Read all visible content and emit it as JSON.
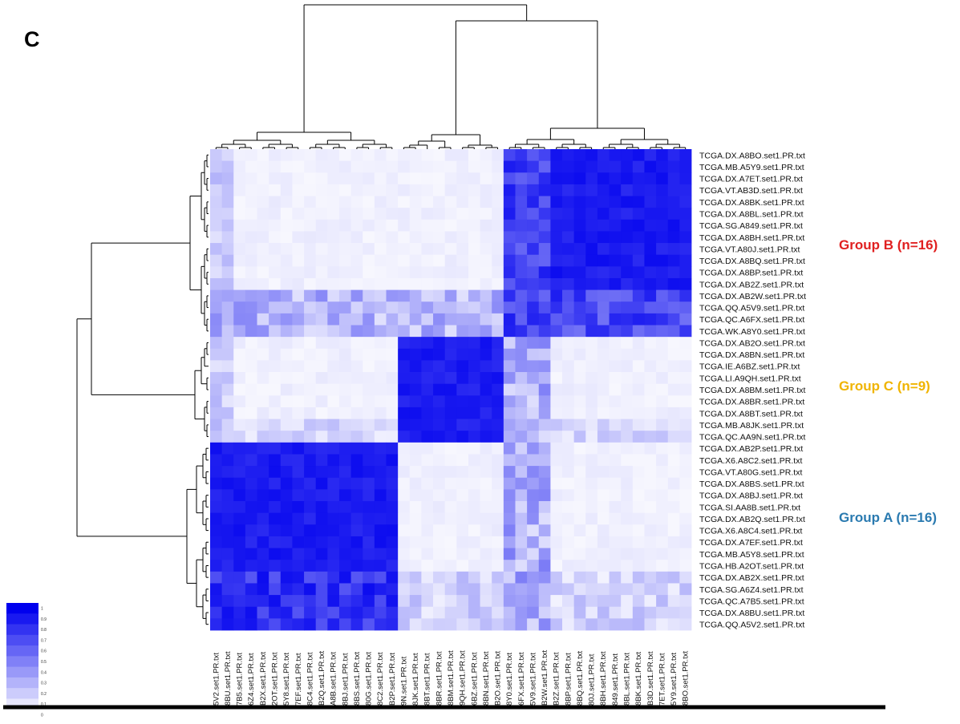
{
  "panel_letter": "C",
  "colors": {
    "high": "#0000ee",
    "low": "#ffffff",
    "dendrogram": "#000000",
    "group_b": "#e02020",
    "group_c": "#f0b400",
    "group_a": "#2a7ab0",
    "baseline": "#000000"
  },
  "groups": [
    {
      "label": "Group B (n=16)",
      "color_key": "group_b"
    },
    {
      "label": "Group C (n=9)",
      "color_key": "group_c"
    },
    {
      "label": "Group A (n=16)",
      "color_key": "group_a"
    }
  ],
  "chart_data": {
    "type": "heatmap",
    "color_scale": {
      "min": 0,
      "max": 1,
      "low_color": "#ffffff",
      "high_color": "#0000ee",
      "tick_labels": [
        "1",
        "0.9",
        "0.8",
        "0.7",
        "0.6",
        "0.5",
        "0.4",
        "0.3",
        "0.2",
        "0.1",
        "0"
      ]
    },
    "row_labels": [
      "TCGA.DX.A8BO.set1.PR.txt",
      "TCGA.MB.A5Y9.set1.PR.txt",
      "TCGA.DX.A7ET.set1.PR.txt",
      "TCGA.VT.AB3D.set1.PR.txt",
      "TCGA.DX.A8BK.set1.PR.txt",
      "TCGA.DX.A8BL.set1.PR.txt",
      "TCGA.SG.A849.set1.PR.txt",
      "TCGA.DX.A8BH.set1.PR.txt",
      "TCGA.VT.A80J.set1.PR.txt",
      "TCGA.DX.A8BQ.set1.PR.txt",
      "TCGA.DX.A8BP.set1.PR.txt",
      "TCGA.DX.AB2Z.set1.PR.txt",
      "TCGA.DX.AB2W.set1.PR.txt",
      "TCGA.QQ.A5V9.set1.PR.txt",
      "TCGA.QC.A6FX.set1.PR.txt",
      "TCGA.WK.A8Y0.set1.PR.txt",
      "TCGA.DX.AB2O.set1.PR.txt",
      "TCGA.DX.A8BN.set1.PR.txt",
      "TCGA.IE.A6BZ.set1.PR.txt",
      "TCGA.LI.A9QH.set1.PR.txt",
      "TCGA.DX.A8BM.set1.PR.txt",
      "TCGA.DX.A8BR.set1.PR.txt",
      "TCGA.DX.A8BT.set1.PR.txt",
      "TCGA.MB.A8JK.set1.PR.txt",
      "TCGA.QC.AA9N.set1.PR.txt",
      "TCGA.DX.AB2P.set1.PR.txt",
      "TCGA.X6.A8C2.set1.PR.txt",
      "TCGA.VT.A80G.set1.PR.txt",
      "TCGA.DX.A8BS.set1.PR.txt",
      "TCGA.DX.A8BJ.set1.PR.txt",
      "TCGA.SI.AA8B.set1.PR.txt",
      "TCGA.DX.AB2Q.set1.PR.txt",
      "TCGA.X6.A8C4.set1.PR.txt",
      "TCGA.DX.A7EF.set1.PR.txt",
      "TCGA.MB.A5Y8.set1.PR.txt",
      "TCGA.HB.A2OT.set1.PR.txt",
      "TCGA.DX.AB2X.set1.PR.txt",
      "TCGA.SG.A6Z4.set1.PR.txt",
      "TCGA.QC.A7B5.set1.PR.txt",
      "TCGA.DX.A8BU.set1.PR.txt",
      "TCGA.QQ.A5V2.set1.PR.txt"
    ],
    "col_labels": [
      "5V2.set1.PR.txt",
      "8BU.set1.PR.txt",
      "7B5.set1.PR.txt",
      "6Z4.set1.PR.txt",
      "B2X.set1.PR.txt",
      "2OT.set1.PR.txt",
      "5Y8.set1.PR.txt",
      "7EF.set1.PR.txt",
      "8C4.set1.PR.txt",
      "B2Q.set1.PR.txt",
      "A8B.set1.PR.txt",
      "8BJ.set1.PR.txt",
      "8BS.set1.PR.txt",
      "80G.set1.PR.txt",
      "8C2.set1.PR.txt",
      "B2P.set1.PR.txt",
      "9N.set1.PR.txt",
      "8JK.set1.PR.txt",
      "8BT.set1.PR.txt",
      "8BR.set1.PR.txt",
      "8BM.set1.PR.txt",
      "9QH.set1.PR.txt",
      "6BZ.set1.PR.txt",
      "8BN.set1.PR.txt",
      "B2O.set1.PR.txt",
      "8Y0.set1.PR.txt",
      "6FX.set1.PR.txt",
      "5V9.set1.PR.txt",
      "B2W.set1.PR.txt",
      "B2Z.set1.PR.txt",
      "8BP.set1.PR.txt",
      "8BQ.set1.PR.txt",
      "80J.set1.PR.txt",
      "8BH.set1.PR.txt",
      "849.set1.PR.txt",
      "8BL.set1.PR.txt",
      "8BK.set1.PR.txt",
      "B3D.set1.PR.txt",
      "7ET.set1.PR.txt",
      "5Y9.set1.PR.txt",
      "8BO.set1.PR.txt"
    ],
    "row_groups": [
      {
        "group": "B",
        "count": 16
      },
      {
        "group": "C",
        "count": 9
      },
      {
        "group": "A",
        "count": 16
      }
    ],
    "col_groups": [
      {
        "group": "A",
        "count": 16
      },
      {
        "group": "C",
        "count": 9
      },
      {
        "group": "B",
        "count": 16
      }
    ],
    "within_group_value": 0.95,
    "between_group_value": 0.03
  }
}
